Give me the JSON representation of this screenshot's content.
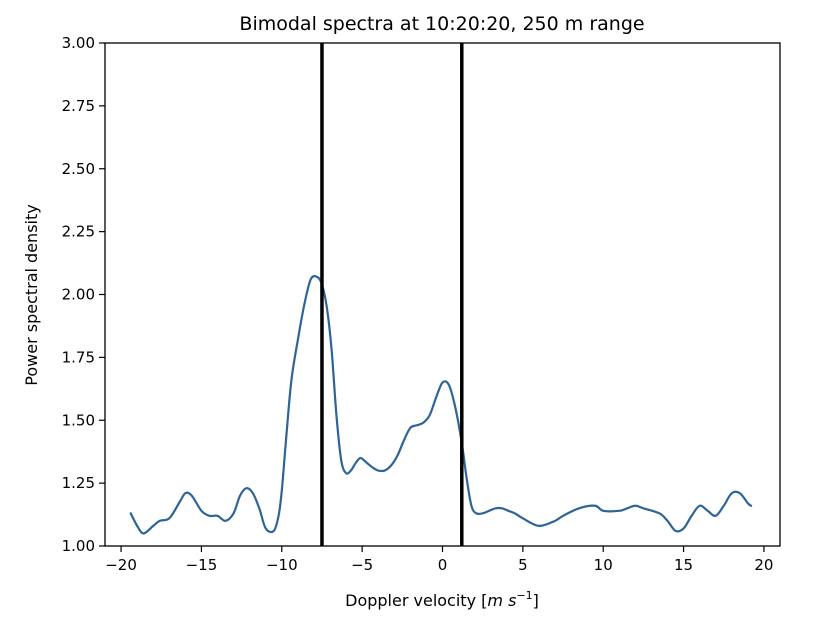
{
  "chart_data": {
    "type": "line",
    "title": "Bimodal spectra at 10:20:20, 250 m range",
    "xlabel": "Doppler velocity",
    "xlabel_unit_parts": [
      "[",
      "m",
      "s",
      "−1",
      "]"
    ],
    "ylabel": "Power spectral density",
    "xlim": [
      -21,
      21
    ],
    "ylim": [
      1.0,
      3.0
    ],
    "x_ticks": [
      -20,
      -15,
      -10,
      -5,
      0,
      5,
      10,
      15,
      20
    ],
    "x_tick_labels": [
      "−20",
      "−15",
      "−10",
      "−5",
      "0",
      "5",
      "10",
      "15",
      "20"
    ],
    "y_ticks": [
      1.0,
      1.25,
      1.5,
      1.75,
      2.0,
      2.25,
      2.5,
      2.75,
      3.0
    ],
    "y_tick_labels": [
      "1.00",
      "1.25",
      "1.50",
      "1.75",
      "2.00",
      "2.25",
      "2.50",
      "2.75",
      "3.00"
    ],
    "grid": false,
    "series": [
      {
        "color": "#2e6496",
        "x": [
          -19.4,
          -19.0,
          -18.6,
          -18.0,
          -17.6,
          -17.0,
          -16.4,
          -16.0,
          -15.6,
          -15.0,
          -14.5,
          -14.0,
          -13.5,
          -13.0,
          -12.6,
          -12.2,
          -11.8,
          -11.4,
          -11.0,
          -10.5,
          -10.2,
          -10.0,
          -9.7,
          -9.4,
          -9.0,
          -8.6,
          -8.2,
          -7.8,
          -7.5,
          -7.2,
          -6.9,
          -6.6,
          -6.3,
          -6.0,
          -5.7,
          -5.4,
          -5.1,
          -4.7,
          -4.3,
          -4.0,
          -3.6,
          -3.2,
          -2.8,
          -2.4,
          -2.0,
          -1.6,
          -1.2,
          -0.8,
          -0.4,
          0.0,
          0.4,
          0.8,
          1.2,
          1.5,
          1.8,
          2.1,
          2.5,
          2.9,
          3.3,
          3.7,
          4.1,
          4.5,
          5.0,
          6.0,
          7.0,
          7.5,
          8.5,
          9.5,
          10.0,
          11.0,
          11.5,
          12.0,
          12.5,
          13.5,
          14.0,
          14.5,
          15.0,
          15.5,
          16.0,
          16.5,
          17.0,
          17.5,
          18.0,
          18.5,
          19.0,
          19.2
        ],
        "y": [
          1.13,
          1.08,
          1.05,
          1.08,
          1.1,
          1.11,
          1.17,
          1.21,
          1.2,
          1.14,
          1.12,
          1.12,
          1.1,
          1.13,
          1.2,
          1.23,
          1.21,
          1.15,
          1.07,
          1.06,
          1.12,
          1.22,
          1.45,
          1.66,
          1.82,
          1.96,
          2.06,
          2.07,
          2.04,
          1.95,
          1.78,
          1.52,
          1.34,
          1.29,
          1.3,
          1.33,
          1.35,
          1.33,
          1.31,
          1.3,
          1.3,
          1.32,
          1.36,
          1.42,
          1.47,
          1.48,
          1.49,
          1.52,
          1.59,
          1.65,
          1.64,
          1.55,
          1.41,
          1.27,
          1.16,
          1.13,
          1.13,
          1.14,
          1.15,
          1.15,
          1.14,
          1.13,
          1.11,
          1.08,
          1.1,
          1.12,
          1.15,
          1.16,
          1.14,
          1.14,
          1.15,
          1.16,
          1.15,
          1.13,
          1.1,
          1.06,
          1.07,
          1.12,
          1.16,
          1.14,
          1.12,
          1.16,
          1.21,
          1.21,
          1.17,
          1.16
        ]
      }
    ],
    "vertical_lines": [
      {
        "x": -7.5,
        "color": "#000000"
      },
      {
        "x": 1.2,
        "color": "#000000"
      }
    ]
  }
}
